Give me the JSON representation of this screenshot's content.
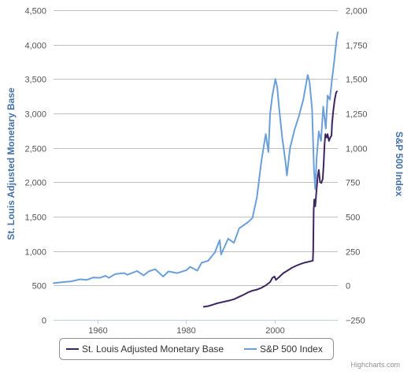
{
  "chart_data": {
    "type": "line",
    "title": "",
    "credits": "Highcharts.com",
    "x_axis": {
      "ticks": [
        1960,
        1980,
        2000
      ],
      "range": [
        1950,
        2014.3
      ]
    },
    "y_axis_left": {
      "label": "St. Louis Adjusted Monetary Base",
      "ticks": [
        0,
        500,
        1000,
        1500,
        2000,
        2500,
        3000,
        3500,
        4000,
        4500
      ],
      "tick_labels": [
        "0",
        "500",
        "1,000",
        "1,500",
        "2,000",
        "2,500",
        "3,000",
        "3,500",
        "4,000",
        "4,500"
      ],
      "range": [
        0,
        4500
      ]
    },
    "y_axis_right": {
      "label": "S&P 500 Index",
      "ticks": [
        -250,
        0,
        250,
        500,
        750,
        1000,
        1250,
        1500,
        1750,
        2000
      ],
      "tick_labels": [
        "−250",
        "0",
        "250",
        "500",
        "750",
        "1,000",
        "1,250",
        "1,500",
        "1,750",
        "2,000"
      ],
      "range": [
        -250,
        2000
      ]
    },
    "grid": true,
    "legend_placement": "bottom-center",
    "series": [
      {
        "name": "St. Louis Adjusted Monetary Base",
        "color": "#3D2562",
        "axis": "left",
        "points": [
          [
            1984.0,
            190
          ],
          [
            1985.0,
            200
          ],
          [
            1986.0,
            220
          ],
          [
            1987.0,
            240
          ],
          [
            1988.0,
            255
          ],
          [
            1989.0,
            270
          ],
          [
            1990.0,
            285
          ],
          [
            1991.0,
            305
          ],
          [
            1992.0,
            335
          ],
          [
            1993.0,
            365
          ],
          [
            1994.0,
            400
          ],
          [
            1995.0,
            425
          ],
          [
            1996.0,
            440
          ],
          [
            1997.0,
            465
          ],
          [
            1998.0,
            500
          ],
          [
            1999.0,
            550
          ],
          [
            1999.5,
            610
          ],
          [
            2000.0,
            630
          ],
          [
            2000.3,
            580
          ],
          [
            2001.0,
            620
          ],
          [
            2002.0,
            680
          ],
          [
            2003.0,
            720
          ],
          [
            2004.0,
            760
          ],
          [
            2005.0,
            790
          ],
          [
            2006.0,
            815
          ],
          [
            2007.0,
            835
          ],
          [
            2008.0,
            850
          ],
          [
            2008.65,
            860
          ],
          [
            2008.75,
            1000
          ],
          [
            2008.85,
            1600
          ],
          [
            2009.0,
            1750
          ],
          [
            2009.2,
            1650
          ],
          [
            2009.5,
            1900
          ],
          [
            2009.8,
            2100
          ],
          [
            2010.0,
            2180
          ],
          [
            2010.3,
            2000
          ],
          [
            2010.6,
            1990
          ],
          [
            2010.9,
            2050
          ],
          [
            2011.1,
            2250
          ],
          [
            2011.3,
            2550
          ],
          [
            2011.5,
            2700
          ],
          [
            2011.8,
            2650
          ],
          [
            2012.0,
            2700
          ],
          [
            2012.3,
            2600
          ],
          [
            2012.6,
            2650
          ],
          [
            2012.9,
            2680
          ],
          [
            2013.0,
            2850
          ],
          [
            2013.3,
            3050
          ],
          [
            2013.6,
            3200
          ],
          [
            2013.9,
            3300
          ],
          [
            2014.1,
            3320
          ]
        ]
      },
      {
        "name": "S&P 500 Index",
        "color": "#6A9FD8",
        "axis": "right",
        "points": [
          [
            1950.0,
            17
          ],
          [
            1952.0,
            24
          ],
          [
            1954.0,
            30
          ],
          [
            1956.0,
            45
          ],
          [
            1957.5,
            40
          ],
          [
            1959.0,
            58
          ],
          [
            1960.5,
            56
          ],
          [
            1961.8,
            70
          ],
          [
            1962.5,
            55
          ],
          [
            1964.0,
            84
          ],
          [
            1966.0,
            90
          ],
          [
            1966.7,
            78
          ],
          [
            1968.9,
            105
          ],
          [
            1970.4,
            73
          ],
          [
            1971.5,
            102
          ],
          [
            1973.0,
            118
          ],
          [
            1974.8,
            65
          ],
          [
            1976.0,
            102
          ],
          [
            1978.0,
            90
          ],
          [
            1980.0,
            110
          ],
          [
            1980.9,
            135
          ],
          [
            1982.5,
            108
          ],
          [
            1983.5,
            165
          ],
          [
            1985.0,
            180
          ],
          [
            1986.5,
            240
          ],
          [
            1987.6,
            330
          ],
          [
            1987.9,
            225
          ],
          [
            1989.5,
            340
          ],
          [
            1990.8,
            310
          ],
          [
            1992.0,
            415
          ],
          [
            1994.0,
            460
          ],
          [
            1995.0,
            490
          ],
          [
            1996.0,
            640
          ],
          [
            1997.0,
            900
          ],
          [
            1998.0,
            1100
          ],
          [
            1998.6,
            970
          ],
          [
            1999.0,
            1250
          ],
          [
            1999.5,
            1380
          ],
          [
            2000.2,
            1500
          ],
          [
            2000.6,
            1440
          ],
          [
            2001.0,
            1300
          ],
          [
            2001.7,
            1080
          ],
          [
            2002.5,
            890
          ],
          [
            2002.8,
            800
          ],
          [
            2003.5,
            1000
          ],
          [
            2004.5,
            1130
          ],
          [
            2005.5,
            1230
          ],
          [
            2006.5,
            1350
          ],
          [
            2007.5,
            1530
          ],
          [
            2007.9,
            1480
          ],
          [
            2008.5,
            1280
          ],
          [
            2008.9,
            850
          ],
          [
            2009.2,
            700
          ],
          [
            2009.5,
            920
          ],
          [
            2010.0,
            1120
          ],
          [
            2010.5,
            1050
          ],
          [
            2011.0,
            1300
          ],
          [
            2011.6,
            1140
          ],
          [
            2012.0,
            1380
          ],
          [
            2012.5,
            1350
          ],
          [
            2013.0,
            1500
          ],
          [
            2013.5,
            1630
          ],
          [
            2014.0,
            1780
          ],
          [
            2014.3,
            1840
          ]
        ]
      }
    ]
  }
}
